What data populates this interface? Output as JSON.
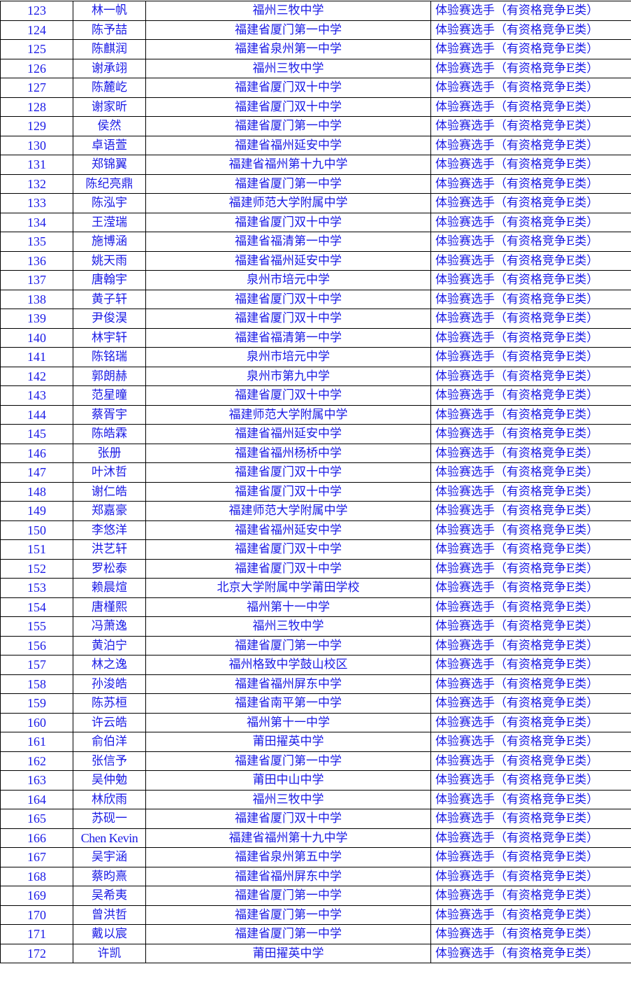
{
  "text_color": "#1a1ae6",
  "category_label": "体验赛选手（有资格竞争E类）",
  "rows": [
    {
      "no": "123",
      "name": "林一帆",
      "school": "福州三牧中学"
    },
    {
      "no": "124",
      "name": "陈予喆",
      "school": "福建省厦门第一中学"
    },
    {
      "no": "125",
      "name": "陈麒润",
      "school": "福建省泉州第一中学"
    },
    {
      "no": "126",
      "name": "谢承翊",
      "school": "福州三牧中学"
    },
    {
      "no": "127",
      "name": "陈麓屹",
      "school": "福建省厦门双十中学"
    },
    {
      "no": "128",
      "name": "谢家昕",
      "school": "福建省厦门双十中学"
    },
    {
      "no": "129",
      "name": "侯然",
      "school": "福建省厦门第一中学"
    },
    {
      "no": "130",
      "name": "卓语萱",
      "school": "福建省福州延安中学"
    },
    {
      "no": "131",
      "name": "郑锦翼",
      "school": "福建省福州第十九中学"
    },
    {
      "no": "132",
      "name": "陈纪亮鼎",
      "school": "福建省厦门第一中学"
    },
    {
      "no": "133",
      "name": "陈泓宇",
      "school": "福建师范大学附属中学"
    },
    {
      "no": "134",
      "name": "王滢瑞",
      "school": "福建省厦门双十中学"
    },
    {
      "no": "135",
      "name": "施博涵",
      "school": "福建省福清第一中学"
    },
    {
      "no": "136",
      "name": "姚天雨",
      "school": "福建省福州延安中学"
    },
    {
      "no": "137",
      "name": "唐翰宇",
      "school": "泉州市培元中学"
    },
    {
      "no": "138",
      "name": "黄子轩",
      "school": "福建省厦门双十中学"
    },
    {
      "no": "139",
      "name": "尹俊淏",
      "school": "福建省厦门双十中学"
    },
    {
      "no": "140",
      "name": "林宇轩",
      "school": "福建省福清第一中学"
    },
    {
      "no": "141",
      "name": "陈铭瑞",
      "school": "泉州市培元中学"
    },
    {
      "no": "142",
      "name": "郭朗赫",
      "school": "泉州市第九中学"
    },
    {
      "no": "143",
      "name": "范星曈",
      "school": "福建省厦门双十中学"
    },
    {
      "no": "144",
      "name": "蔡胥宇",
      "school": "福建师范大学附属中学"
    },
    {
      "no": "145",
      "name": "陈皓霖",
      "school": "福建省福州延安中学"
    },
    {
      "no": "146",
      "name": "张册",
      "school": "福建省福州杨桥中学"
    },
    {
      "no": "147",
      "name": "叶沐哲",
      "school": "福建省厦门双十中学"
    },
    {
      "no": "148",
      "name": "谢仁皓",
      "school": "福建省厦门双十中学"
    },
    {
      "no": "149",
      "name": "郑嘉豪",
      "school": "福建师范大学附属中学"
    },
    {
      "no": "150",
      "name": "李悠洋",
      "school": "福建省福州延安中学"
    },
    {
      "no": "151",
      "name": "洪艺轩",
      "school": "福建省厦门双十中学"
    },
    {
      "no": "152",
      "name": "罗松泰",
      "school": "福建省厦门双十中学"
    },
    {
      "no": "153",
      "name": "赖晨煊",
      "school": "北京大学附属中学莆田学校"
    },
    {
      "no": "154",
      "name": "唐槿熙",
      "school": "福州第十一中学"
    },
    {
      "no": "155",
      "name": "冯萧逸",
      "school": "福州三牧中学"
    },
    {
      "no": "156",
      "name": "黄泊宁",
      "school": "福建省厦门第一中学"
    },
    {
      "no": "157",
      "name": "林之逸",
      "school": "福州格致中学鼓山校区"
    },
    {
      "no": "158",
      "name": "孙浚皓",
      "school": "福建省福州屏东中学"
    },
    {
      "no": "159",
      "name": "陈苏桓",
      "school": "福建省南平第一中学"
    },
    {
      "no": "160",
      "name": "许云皓",
      "school": "福州第十一中学"
    },
    {
      "no": "161",
      "name": "俞伯洋",
      "school": "莆田擢英中学"
    },
    {
      "no": "162",
      "name": "张信予",
      "school": "福建省厦门第一中学"
    },
    {
      "no": "163",
      "name": "吴仲勉",
      "school": "莆田中山中学"
    },
    {
      "no": "164",
      "name": "林欣雨",
      "school": "福州三牧中学"
    },
    {
      "no": "165",
      "name": "苏砚一",
      "school": "福建省厦门双十中学"
    },
    {
      "no": "166",
      "name": "Chen Kevin",
      "school": "福建省福州第十九中学"
    },
    {
      "no": "167",
      "name": "吴宇涵",
      "school": "福建省泉州第五中学"
    },
    {
      "no": "168",
      "name": "蔡昀熹",
      "school": "福建省福州屏东中学"
    },
    {
      "no": "169",
      "name": "吴希夷",
      "school": "福建省厦门第一中学"
    },
    {
      "no": "170",
      "name": "曾洪哲",
      "school": "福建省厦门第一中学"
    },
    {
      "no": "171",
      "name": "戴以宸",
      "school": "福建省厦门第一中学"
    },
    {
      "no": "172",
      "name": "许凯",
      "school": "莆田擢英中学"
    }
  ]
}
